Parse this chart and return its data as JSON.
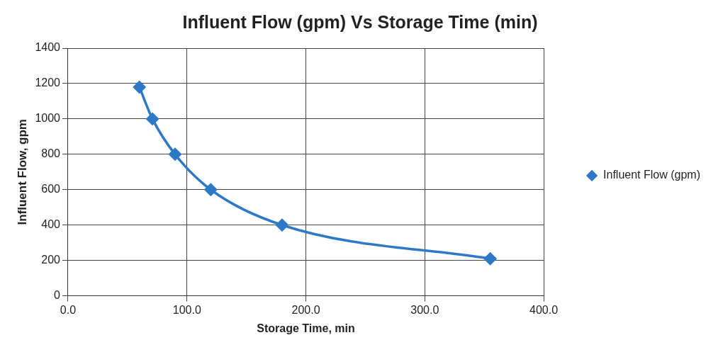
{
  "chart_data": {
    "type": "line",
    "title": "Influent Flow (gpm) Vs Storage Time (min)",
    "xlabel": "Storage Time, min",
    "ylabel": "Influent Flow, gpm",
    "x": [
      60,
      71,
      90,
      120,
      180,
      355
    ],
    "series": [
      {
        "name": "Influent Flow (gpm)",
        "color": "#2e78c8",
        "values": [
          1180,
          1000,
          800,
          600,
          400,
          210
        ]
      }
    ],
    "xlim": [
      0,
      400
    ],
    "xticks": [
      {
        "value": 0,
        "label": "0.0"
      },
      {
        "value": 100,
        "label": "100.0"
      },
      {
        "value": 200,
        "label": "200.0"
      },
      {
        "value": 300,
        "label": "300.0"
      },
      {
        "value": 400,
        "label": "400.0"
      }
    ],
    "ylim": [
      0,
      1400
    ],
    "yticks": [
      0,
      200,
      400,
      600,
      800,
      1000,
      1200,
      1400
    ],
    "grid": true,
    "legend": "right",
    "marker": "diamond",
    "line_style": "solid"
  }
}
